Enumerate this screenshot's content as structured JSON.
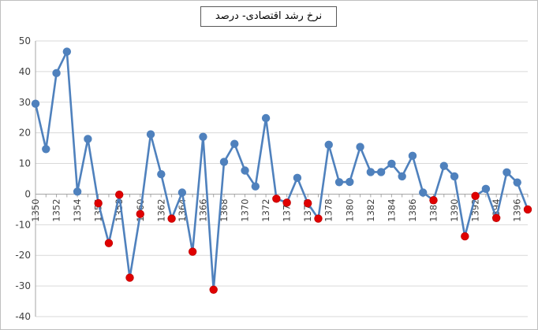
{
  "chart_data": {
    "type": "line",
    "title": "نرخ رشد اقتصادی- درصد",
    "xlabel": "",
    "ylabel": "",
    "ylim": [
      -40,
      50
    ],
    "yticks": [
      50,
      40,
      30,
      20,
      10,
      0,
      -10,
      -20,
      -30,
      -40
    ],
    "x_tick_labels": [
      "1350",
      "1352",
      "1354",
      "1356",
      "1358",
      "1360",
      "1362",
      "1364",
      "1366",
      "1368",
      "1370",
      "1372",
      "1374",
      "1376",
      "1378",
      "1380",
      "1382",
      "1384",
      "1386",
      "1388",
      "1390",
      "1392",
      "1394",
      "1396"
    ],
    "grid": true,
    "legend": "none",
    "colors": {
      "line": "#4f81bd",
      "marker": "#4f81bd",
      "negative_marker": "#e00000",
      "negative_marker_edge": "#c00000"
    },
    "series": [
      {
        "x": [
          1350,
          1351,
          1352,
          1353,
          1354,
          1355,
          1356,
          1357,
          1358,
          1359,
          1360,
          1361,
          1362,
          1363,
          1364,
          1365,
          1366,
          1367,
          1368,
          1369,
          1370,
          1371,
          1372,
          1373,
          1374,
          1375,
          1376,
          1377,
          1378,
          1379,
          1380,
          1381,
          1382,
          1383,
          1384,
          1385,
          1386,
          1387,
          1388,
          1389,
          1390,
          1391,
          1392,
          1393,
          1394,
          1395,
          1396,
          1397
        ],
        "values": [
          29.5,
          14.7,
          39.5,
          46.5,
          0.8,
          18,
          -3,
          -16,
          -0.2,
          -27.3,
          -6.5,
          19.5,
          6.5,
          -8,
          0.5,
          -18.8,
          18.7,
          -31.2,
          10.5,
          16.4,
          7.7,
          2.5,
          24.8,
          -1.5,
          -2.8,
          5.3,
          -3,
          -8,
          16.1,
          3.9,
          4,
          15.4,
          7.2,
          7.2,
          9.9,
          5.8,
          12.5,
          0.5,
          -2,
          9.2,
          5.8,
          -13.8,
          -0.6,
          1.7,
          -7.8,
          7.1,
          3.8,
          -5
        ]
      }
    ]
  }
}
